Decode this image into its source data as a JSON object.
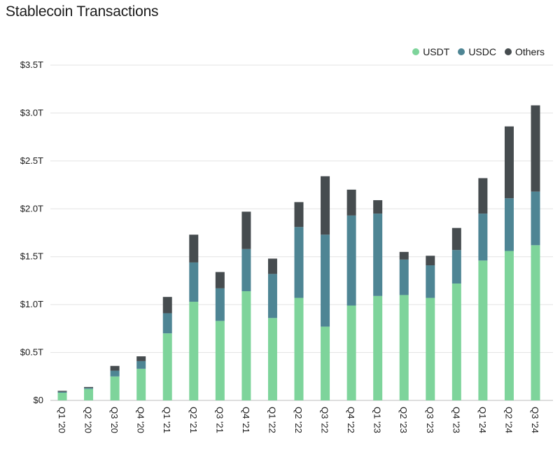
{
  "chart_data": {
    "type": "bar",
    "stacked": true,
    "title": "Stablecoin Transactions",
    "xlabel": "",
    "ylabel": "",
    "ylim": [
      0,
      3.5
    ],
    "yticks": [
      0,
      0.5,
      1.0,
      1.5,
      2.0,
      2.5,
      3.0,
      3.5
    ],
    "ytick_labels": [
      "$0",
      "$0.5T",
      "$1.0T",
      "$1.5T",
      "$2.0T",
      "$2.5T",
      "$3.0T",
      "$3.5T"
    ],
    "grid": true,
    "legend_position": "top-right",
    "categories": [
      "Q1 '20",
      "Q2 '20",
      "Q3 '20",
      "Q4 '20",
      "Q1 '21",
      "Q2 '21",
      "Q3 '21",
      "Q4 '21",
      "Q1 '22",
      "Q2 '22",
      "Q3 '22",
      "Q4 '22",
      "Q1 '23",
      "Q2 '23",
      "Q3 '23",
      "Q4 '23",
      "Q1 '24",
      "Q2 '24",
      "Q3 '24"
    ],
    "series": [
      {
        "name": "USDT",
        "color": "#7ed49b",
        "values": [
          0.08,
          0.12,
          0.25,
          0.33,
          0.7,
          1.03,
          0.83,
          1.14,
          0.86,
          1.07,
          0.77,
          0.99,
          1.09,
          1.1,
          1.07,
          1.22,
          1.46,
          1.56,
          1.62
        ]
      },
      {
        "name": "USDC",
        "color": "#4e8594",
        "values": [
          0.01,
          0.01,
          0.06,
          0.08,
          0.21,
          0.41,
          0.34,
          0.44,
          0.46,
          0.74,
          0.96,
          0.94,
          0.86,
          0.37,
          0.34,
          0.35,
          0.49,
          0.55,
          0.56
        ]
      },
      {
        "name": "Others",
        "color": "#464c4f",
        "values": [
          0.01,
          0.01,
          0.05,
          0.05,
          0.17,
          0.29,
          0.17,
          0.39,
          0.16,
          0.26,
          0.61,
          0.27,
          0.14,
          0.08,
          0.1,
          0.23,
          0.37,
          0.75,
          0.9
        ]
      }
    ]
  }
}
